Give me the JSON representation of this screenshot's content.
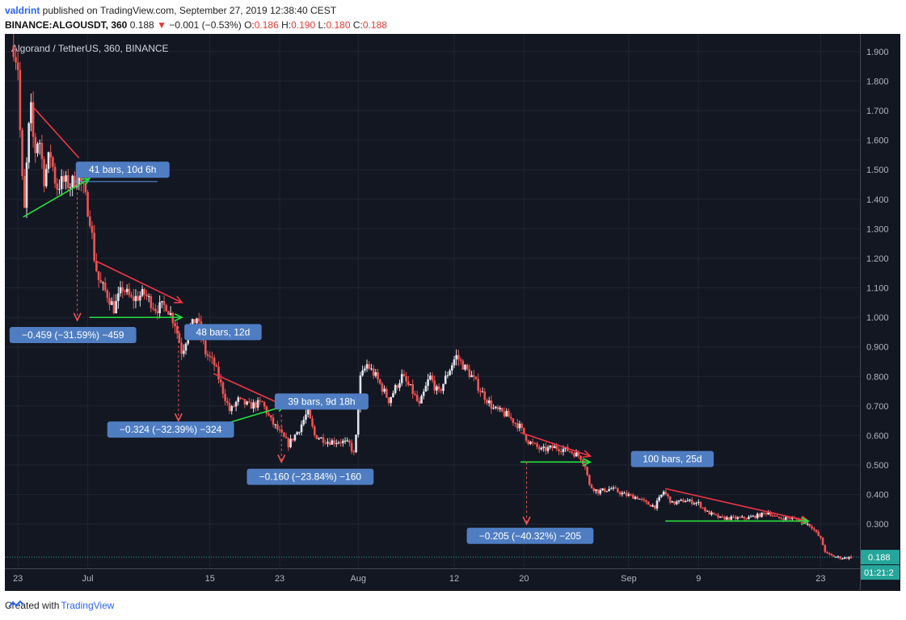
{
  "header": {
    "author": "valdrint",
    "published_text": " published on TradingView.com, September 27, 2019 12:38:40 CEST",
    "symbol": "BINANCE:ALGOUSDT, 360",
    "last": "0.188",
    "change": "−0.001 (−0.53%)",
    "o_label": "O:",
    "o": "0.186",
    "h_label": "H:",
    "h": "0.190",
    "l_label": "L:",
    "l": "0.180",
    "c_label": "C:",
    "c": "0.188"
  },
  "footer": {
    "created_with": "Created with",
    "brand": "TradingView"
  },
  "colors": {
    "bg": "#131722",
    "up": "#e0e3eb",
    "down": "#ef5350",
    "red_line": "#f23645",
    "green_line": "#26e23d",
    "label_bg": "#4f7dc2",
    "grid": "#1f2533"
  },
  "chart_data": {
    "type": "candlestick",
    "title": "Algorand / TetherUS, 360, BINANCE",
    "ylim": [
      0.15,
      1.96
    ],
    "y_ticks": [
      1.9,
      1.8,
      1.7,
      1.6,
      1.5,
      1.4,
      1.3,
      1.2,
      1.1,
      1.0,
      0.9,
      0.8,
      0.7,
      0.6,
      0.5,
      0.4,
      0.3
    ],
    "y_tick_labels": [
      "1.900",
      "1.800",
      "1.700",
      "1.600",
      "1.500",
      "1.400",
      "1.300",
      "1.200",
      "1.100",
      "1.000",
      "0.900",
      "0.800",
      "0.700",
      "0.600",
      "0.500",
      "0.400",
      "0.300"
    ],
    "x_tick_labels": [
      "23",
      "Jul",
      "15",
      "23",
      "Aug",
      "12",
      "20",
      "Sep",
      "9",
      "23"
    ],
    "x_tick_days": [
      -7,
      1,
      15,
      23,
      32,
      43,
      51,
      63,
      71,
      85
    ],
    "xlim_days": [
      -8.5,
      89.5
    ],
    "price_path": [
      [
        -7.5,
        1.92
      ],
      [
        -7.0,
        1.85
      ],
      [
        -6.6,
        1.5
      ],
      [
        -6.2,
        1.34
      ],
      [
        -5.9,
        1.6
      ],
      [
        -5.5,
        1.7
      ],
      [
        -5.1,
        1.55
      ],
      [
        -4.6,
        1.62
      ],
      [
        -4.0,
        1.47
      ],
      [
        -3.3,
        1.56
      ],
      [
        -2.6,
        1.44
      ],
      [
        -1.9,
        1.46
      ],
      [
        -1.0,
        1.45
      ],
      [
        0.0,
        1.48
      ],
      [
        0.6,
        1.42
      ],
      [
        1.3,
        1.33
      ],
      [
        1.8,
        1.19
      ],
      [
        2.3,
        1.12
      ],
      [
        3.2,
        1.08
      ],
      [
        4.0,
        1.03
      ],
      [
        5.0,
        1.1
      ],
      [
        6.0,
        1.06
      ],
      [
        7.5,
        1.08
      ],
      [
        8.8,
        1.03
      ],
      [
        10.0,
        1.04
      ],
      [
        11.0,
        0.98
      ],
      [
        11.8,
        0.88
      ],
      [
        12.5,
        0.95
      ],
      [
        13.5,
        1.0
      ],
      [
        14.5,
        0.88
      ],
      [
        15.5,
        0.84
      ],
      [
        16.5,
        0.75
      ],
      [
        17.3,
        0.68
      ],
      [
        18.2,
        0.72
      ],
      [
        19.5,
        0.7
      ],
      [
        21.0,
        0.71
      ],
      [
        22.0,
        0.65
      ],
      [
        23.0,
        0.61
      ],
      [
        24.0,
        0.57
      ],
      [
        25.2,
        0.62
      ],
      [
        26.2,
        0.68
      ],
      [
        27.0,
        0.6
      ],
      [
        28.5,
        0.58
      ],
      [
        30.0,
        0.58
      ],
      [
        31.0,
        0.57
      ],
      [
        31.6,
        0.53
      ],
      [
        32.2,
        0.79
      ],
      [
        33.0,
        0.84
      ],
      [
        34.0,
        0.8
      ],
      [
        35.5,
        0.72
      ],
      [
        37.0,
        0.8
      ],
      [
        38.2,
        0.75
      ],
      [
        39.0,
        0.7
      ],
      [
        40.2,
        0.8
      ],
      [
        41.2,
        0.74
      ],
      [
        42.4,
        0.82
      ],
      [
        43.2,
        0.87
      ],
      [
        44.2,
        0.83
      ],
      [
        45.0,
        0.8
      ],
      [
        46.3,
        0.74
      ],
      [
        47.5,
        0.69
      ],
      [
        49.0,
        0.67
      ],
      [
        50.5,
        0.63
      ],
      [
        51.5,
        0.58
      ],
      [
        53.0,
        0.55
      ],
      [
        54.5,
        0.56
      ],
      [
        56.0,
        0.55
      ],
      [
        57.4,
        0.53
      ],
      [
        58.0,
        0.5
      ],
      [
        58.5,
        0.43
      ],
      [
        59.5,
        0.41
      ],
      [
        61.0,
        0.42
      ],
      [
        62.5,
        0.4
      ],
      [
        64.0,
        0.39
      ],
      [
        65.0,
        0.37
      ],
      [
        66.0,
        0.36
      ],
      [
        67.0,
        0.41
      ],
      [
        68.0,
        0.37
      ],
      [
        69.5,
        0.38
      ],
      [
        71.0,
        0.37
      ],
      [
        72.0,
        0.34
      ],
      [
        73.5,
        0.32
      ],
      [
        75.0,
        0.32
      ],
      [
        76.5,
        0.32
      ],
      [
        78.0,
        0.33
      ],
      [
        79.0,
        0.34
      ],
      [
        80.0,
        0.32
      ],
      [
        81.5,
        0.32
      ],
      [
        83.0,
        0.31
      ],
      [
        84.0,
        0.29
      ],
      [
        85.0,
        0.25
      ],
      [
        85.6,
        0.2
      ],
      [
        86.5,
        0.19
      ],
      [
        87.5,
        0.185
      ],
      [
        88.5,
        0.188
      ]
    ],
    "current_price_label": "0.188",
    "countdown_label": "01:21:2",
    "trendlines": [
      {
        "color": "red",
        "arrow": false,
        "from": [
          -5.2,
          1.71
        ],
        "to": [
          0.0,
          1.54
        ]
      },
      {
        "color": "green",
        "arrow": true,
        "from": [
          -6.4,
          1.34
        ],
        "to": [
          1.2,
          1.47
        ]
      },
      {
        "color": "red",
        "arrow": true,
        "from": [
          2.0,
          1.19
        ],
        "to": [
          11.8,
          1.05
        ]
      },
      {
        "color": "green",
        "arrow": true,
        "from": [
          1.2,
          1.0
        ],
        "to": [
          11.8,
          1.0
        ]
      },
      {
        "color": "red",
        "arrow": true,
        "from": [
          15.4,
          0.81
        ],
        "to": [
          23.6,
          0.7
        ]
      },
      {
        "color": "green",
        "arrow": true,
        "from": [
          16.8,
          0.64
        ],
        "to": [
          23.6,
          0.7
        ]
      },
      {
        "color": "red",
        "arrow": true,
        "from": [
          50.6,
          0.61
        ],
        "to": [
          58.6,
          0.53
        ]
      },
      {
        "color": "green",
        "arrow": true,
        "from": [
          50.6,
          0.51
        ],
        "to": [
          58.6,
          0.51
        ]
      },
      {
        "color": "red",
        "arrow": true,
        "from": [
          67.2,
          0.42
        ],
        "to": [
          83.6,
          0.31
        ]
      },
      {
        "color": "green",
        "arrow": true,
        "from": [
          67.2,
          0.31
        ],
        "to": [
          83.6,
          0.31
        ]
      }
    ],
    "ruler_lines": [
      {
        "from": [
          -0.6,
          1.46
        ],
        "to": [
          9.0,
          1.46
        ]
      }
    ],
    "drops": [
      {
        "day": -0.2,
        "from": 1.44,
        "to": 0.99
      },
      {
        "day": 11.4,
        "from": 0.97,
        "to": 0.65
      },
      {
        "day": 23.2,
        "from": 0.67,
        "to": 0.51
      },
      {
        "day": 51.3,
        "from": 0.51,
        "to": 0.3
      }
    ],
    "annotations": [
      {
        "text": "41 bars, 10d 6h",
        "day": 5.0,
        "price": 1.5
      },
      {
        "text": "−0.459 (−31.59%) −459",
        "day": -0.7,
        "price": 0.94
      },
      {
        "text": "48 bars, 12d",
        "day": 16.5,
        "price": 0.95
      },
      {
        "text": "−0.324 (−32.39%) −324",
        "day": 10.5,
        "price": 0.62
      },
      {
        "text": "39 bars, 9d 18h",
        "day": 27.8,
        "price": 0.715
      },
      {
        "text": "−0.160 (−23.84%) −160",
        "day": 26.5,
        "price": 0.46
      },
      {
        "text": "−0.205 (−40.32%) −205",
        "day": 51.7,
        "price": 0.26
      },
      {
        "text": "100 bars, 25d",
        "day": 68.0,
        "price": 0.52
      }
    ]
  }
}
